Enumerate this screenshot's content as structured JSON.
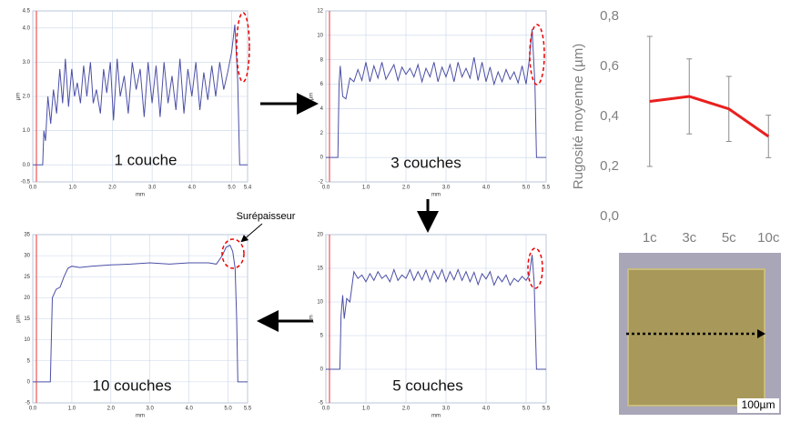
{
  "chart_data": [
    {
      "type": "line",
      "label": "1 couche",
      "x_label": "mm",
      "y_label": "µm",
      "x": [
        0,
        0.25,
        0.28,
        0.32,
        0.38,
        0.45,
        0.52,
        0.6,
        0.68,
        0.75,
        0.82,
        0.9,
        0.98,
        1.05,
        1.12,
        1.2,
        1.28,
        1.36,
        1.45,
        1.52,
        1.6,
        1.7,
        1.78,
        1.86,
        1.95,
        2.03,
        2.12,
        2.2,
        2.3,
        2.4,
        2.5,
        2.6,
        2.7,
        2.8,
        2.9,
        3.0,
        3.1,
        3.2,
        3.3,
        3.4,
        3.5,
        3.6,
        3.7,
        3.8,
        3.9,
        4.0,
        4.1,
        4.2,
        4.3,
        4.4,
        4.5,
        4.6,
        4.7,
        4.8,
        4.9,
        5.0,
        5.08,
        5.15,
        5.2,
        5.4
      ],
      "series": [
        {
          "color": "#4b4fa6",
          "values": [
            0,
            0,
            1.0,
            0.7,
            2.0,
            1.2,
            2.2,
            1.5,
            2.8,
            1.8,
            3.1,
            1.7,
            2.8,
            2.0,
            2.4,
            1.8,
            2.9,
            2.0,
            3.0,
            1.8,
            2.2,
            1.5,
            2.8,
            2.1,
            3.0,
            1.3,
            3.1,
            2.0,
            2.6,
            1.5,
            3.0,
            2.2,
            2.8,
            1.4,
            3.0,
            1.8,
            2.9,
            1.4,
            3.0,
            1.8,
            2.6,
            1.6,
            3.1,
            1.5,
            2.8,
            2.0,
            3.0,
            1.6,
            2.7,
            1.9,
            2.9,
            2.0,
            3.0,
            2.2,
            2.7,
            3.3,
            4.1,
            2.5,
            0,
            0
          ]
        }
      ],
      "xlim": [
        0,
        5.4
      ],
      "xticks": [
        {
          "value": 0,
          "label": "0.0"
        },
        {
          "value": 1,
          "label": "1.0"
        },
        {
          "value": 2,
          "label": "2.0"
        },
        {
          "value": 3,
          "label": "3.0"
        },
        {
          "value": 4,
          "label": "4.0"
        },
        {
          "value": 5,
          "label": "5.0"
        },
        5.4
      ],
      "ylim": [
        -0.5,
        4.5
      ],
      "yticks": [
        -0.5,
        {
          "value": 0,
          "label": "0.0"
        },
        {
          "value": 1,
          "label": "1.0"
        },
        {
          "value": 2,
          "label": "2.0"
        },
        {
          "value": 3,
          "label": "3.0"
        },
        {
          "value": 4,
          "label": "4.0"
        },
        4.5
      ]
    },
    {
      "type": "line",
      "label": "3 couches",
      "x_label": "mm",
      "y_label": "µm",
      "x": [
        0,
        0.3,
        0.33,
        0.36,
        0.42,
        0.5,
        0.6,
        0.7,
        0.8,
        0.9,
        1.0,
        1.1,
        1.2,
        1.3,
        1.4,
        1.5,
        1.6,
        1.7,
        1.8,
        1.9,
        2.0,
        2.1,
        2.2,
        2.3,
        2.4,
        2.5,
        2.6,
        2.7,
        2.8,
        2.9,
        3.0,
        3.1,
        3.2,
        3.3,
        3.4,
        3.5,
        3.6,
        3.7,
        3.8,
        3.9,
        4.0,
        4.1,
        4.2,
        4.3,
        4.4,
        4.5,
        4.6,
        4.7,
        4.8,
        4.9,
        5.0,
        5.08,
        5.15,
        5.22,
        5.26,
        5.5
      ],
      "series": [
        {
          "color": "#4b4fa6",
          "values": [
            0,
            0,
            6,
            7.5,
            5,
            4.8,
            6.5,
            6.2,
            7.2,
            6.3,
            7.8,
            6.2,
            7.5,
            6.5,
            7.8,
            6.4,
            7.0,
            7.6,
            6.3,
            7.4,
            6.8,
            7.3,
            6.6,
            7.6,
            6.2,
            7.3,
            6.6,
            7.8,
            6.2,
            7.4,
            6.6,
            7.6,
            6.2,
            7.8,
            6.6,
            7.3,
            6.5,
            8.2,
            6.3,
            7.8,
            6.2,
            7.4,
            6.0,
            7.0,
            6.2,
            7.2,
            6.4,
            7.0,
            6.1,
            7.5,
            6.0,
            8,
            10.5,
            6,
            0,
            0
          ]
        }
      ],
      "xlim": [
        0,
        5.5
      ],
      "xticks": [
        {
          "value": 0,
          "label": "0.0"
        },
        {
          "value": 1,
          "label": "1.0"
        },
        {
          "value": 2,
          "label": "2.0"
        },
        {
          "value": 3,
          "label": "3.0"
        },
        {
          "value": 4,
          "label": "4.0"
        },
        {
          "value": 5,
          "label": "5.0"
        },
        5.5
      ],
      "ylim": [
        -2,
        12
      ],
      "yticks": [
        -2,
        0,
        2,
        4,
        6,
        8,
        10,
        12
      ]
    },
    {
      "type": "line",
      "label": "5 couches",
      "x_label": "mm",
      "y_label": "µm",
      "x": [
        0,
        0.35,
        0.38,
        0.42,
        0.46,
        0.52,
        0.6,
        0.7,
        0.8,
        0.9,
        1.0,
        1.1,
        1.2,
        1.3,
        1.4,
        1.5,
        1.6,
        1.7,
        1.8,
        1.9,
        2.0,
        2.1,
        2.2,
        2.3,
        2.4,
        2.5,
        2.6,
        2.7,
        2.8,
        2.9,
        3.0,
        3.1,
        3.2,
        3.3,
        3.4,
        3.5,
        3.6,
        3.7,
        3.8,
        3.9,
        4.0,
        4.1,
        4.2,
        4.3,
        4.4,
        4.5,
        4.6,
        4.7,
        4.8,
        4.9,
        5.0,
        5.08,
        5.15,
        5.2,
        5.26,
        5.5
      ],
      "series": [
        {
          "color": "#4b4fa6",
          "values": [
            0,
            0,
            8,
            11,
            7.5,
            10.5,
            10,
            14.5,
            13.5,
            14,
            13,
            14.2,
            13.2,
            14.5,
            13.5,
            14,
            13,
            14.8,
            13.2,
            14,
            13.5,
            14.8,
            13.2,
            14.5,
            13.3,
            14.7,
            13,
            14.6,
            13.4,
            14.8,
            13,
            14.5,
            13.3,
            14.8,
            13.2,
            14.5,
            13,
            14.4,
            12.6,
            14.2,
            13.4,
            14.5,
            12.5,
            13.8,
            13,
            14,
            12.5,
            13.5,
            13,
            13.8,
            13.2,
            14,
            17,
            13,
            0,
            0
          ]
        }
      ],
      "xlim": [
        0,
        5.5
      ],
      "xticks": [
        {
          "value": 0,
          "label": "0.0"
        },
        {
          "value": 1,
          "label": "1.0"
        },
        {
          "value": 2,
          "label": "2.0"
        },
        {
          "value": 3,
          "label": "3.0"
        },
        {
          "value": 4,
          "label": "4.0"
        },
        {
          "value": 5,
          "label": "5.0"
        },
        5.5
      ],
      "ylim": [
        -5,
        20
      ],
      "yticks": [
        -5,
        0,
        5,
        10,
        15,
        20
      ]
    },
    {
      "type": "line",
      "label": "10 couches",
      "annotation": "Surépaisseur",
      "x_label": "mm",
      "y_label": "µm",
      "x": [
        0,
        0.45,
        0.5,
        0.6,
        0.7,
        0.8,
        0.9,
        1.0,
        1.2,
        1.5,
        2.0,
        2.5,
        3.0,
        3.5,
        4.0,
        4.5,
        4.7,
        4.85,
        4.95,
        5.05,
        5.12,
        5.18,
        5.22,
        5.25,
        5.5
      ],
      "series": [
        {
          "color": "#4b4fa6",
          "values": [
            0,
            0,
            20,
            22,
            22.5,
            25,
            27,
            27.5,
            27.2,
            27.5,
            27.8,
            28,
            28.3,
            28,
            28.3,
            28.3,
            28,
            30,
            32,
            32.5,
            31,
            27,
            15,
            0,
            0
          ]
        }
      ],
      "xlim": [
        0,
        5.5
      ],
      "xticks": [
        {
          "value": 0,
          "label": "0.0"
        },
        {
          "value": 1,
          "label": "1.0"
        },
        {
          "value": 2,
          "label": "2.0"
        },
        {
          "value": 3,
          "label": "3.0"
        },
        {
          "value": 4,
          "label": "4.0"
        },
        {
          "value": 5,
          "label": "5.0"
        },
        5.5
      ],
      "ylim": [
        -5,
        35
      ],
      "yticks": [
        -5,
        0,
        5,
        10,
        15,
        20,
        25,
        30,
        35
      ]
    },
    {
      "type": "errorline",
      "y_label": "Rugosité moyenne (µm)",
      "categories": [
        "1c",
        "3c",
        "5c",
        "10c"
      ],
      "series": [
        {
          "color": "#e8201e",
          "values": [
            0.46,
            0.48,
            0.43,
            0.32
          ],
          "errors": [
            0.26,
            0.15,
            0.13,
            0.085
          ]
        }
      ],
      "ylim": [
        0,
        0.8
      ],
      "yticks": [
        {
          "value": 0,
          "label": "0,0"
        },
        {
          "value": 0.2,
          "label": "0,2"
        },
        {
          "value": 0.4,
          "label": "0,4"
        },
        {
          "value": 0.6,
          "label": "0,6"
        },
        {
          "value": 0.8,
          "label": "0,8"
        }
      ]
    }
  ],
  "photo": {
    "scale_bar": "100µm"
  }
}
